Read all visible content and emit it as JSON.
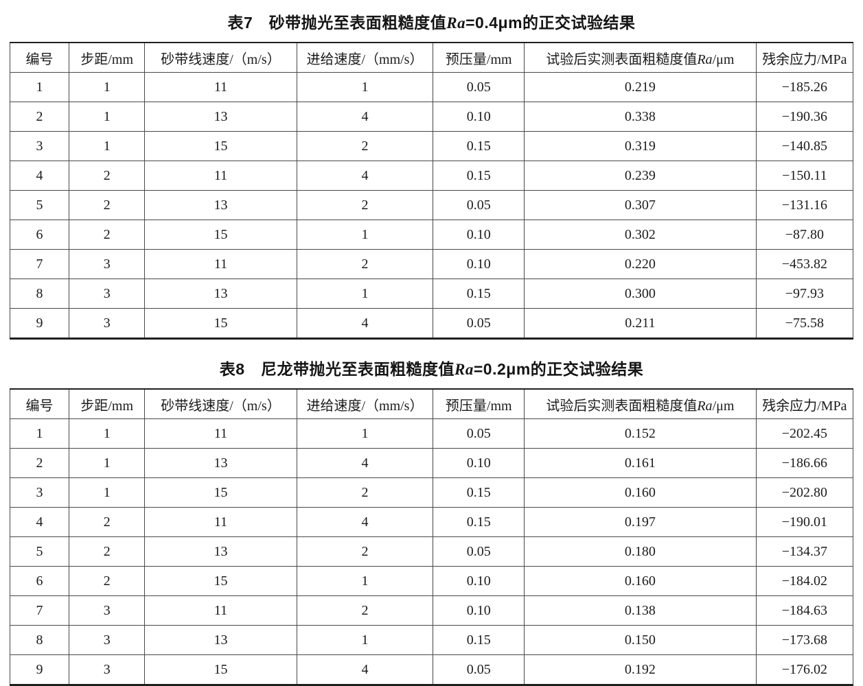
{
  "document": {
    "background": "#ffffff",
    "text_color": "#1b1b1b",
    "border_color": "#474747",
    "heavy_rule_color": "#1e1e1e"
  },
  "chart_data": [
    {
      "type": "table",
      "title": "表7　砂带抛光至表面粗糙度值Ra=0.4μm的正交试验结果",
      "columns": [
        "编号",
        "步距/mm",
        "砂带线速度/（m/s）",
        "进给速度/（mm/s）",
        "预压量/mm",
        "试验后实测表面粗糙度值Ra/μm",
        "残余应力/MPa"
      ],
      "rows": [
        [
          "1",
          "1",
          "11",
          "1",
          "0.05",
          "0.219",
          "−185.26"
        ],
        [
          "2",
          "1",
          "13",
          "4",
          "0.10",
          "0.338",
          "−190.36"
        ],
        [
          "3",
          "1",
          "15",
          "2",
          "0.15",
          "0.319",
          "−140.85"
        ],
        [
          "4",
          "2",
          "11",
          "4",
          "0.15",
          "0.239",
          "−150.11"
        ],
        [
          "5",
          "2",
          "13",
          "2",
          "0.05",
          "0.307",
          "−131.16"
        ],
        [
          "6",
          "2",
          "15",
          "1",
          "0.10",
          "0.302",
          "−87.80"
        ],
        [
          "7",
          "3",
          "11",
          "2",
          "0.10",
          "0.220",
          "−453.82"
        ],
        [
          "8",
          "3",
          "13",
          "1",
          "0.15",
          "0.300",
          "−97.93"
        ],
        [
          "9",
          "3",
          "15",
          "4",
          "0.05",
          "0.211",
          "−75.58"
        ]
      ]
    },
    {
      "type": "table",
      "title": "表8　尼龙带抛光至表面粗糙度值Ra=0.2μm的正交试验结果",
      "columns": [
        "编号",
        "步距/mm",
        "砂带线速度/（m/s）",
        "进给速度/（mm/s）",
        "预压量/mm",
        "试验后实测表面粗糙度值Ra/μm",
        "残余应力/MPa"
      ],
      "rows": [
        [
          "1",
          "1",
          "11",
          "1",
          "0.05",
          "0.152",
          "−202.45"
        ],
        [
          "2",
          "1",
          "13",
          "4",
          "0.10",
          "0.161",
          "−186.66"
        ],
        [
          "3",
          "1",
          "15",
          "2",
          "0.15",
          "0.160",
          "−202.80"
        ],
        [
          "4",
          "2",
          "11",
          "4",
          "0.15",
          "0.197",
          "−190.01"
        ],
        [
          "5",
          "2",
          "13",
          "2",
          "0.05",
          "0.180",
          "−134.37"
        ],
        [
          "6",
          "2",
          "15",
          "1",
          "0.10",
          "0.160",
          "−184.02"
        ],
        [
          "7",
          "3",
          "11",
          "2",
          "0.10",
          "0.138",
          "−184.63"
        ],
        [
          "8",
          "3",
          "13",
          "1",
          "0.15",
          "0.150",
          "−173.68"
        ],
        [
          "9",
          "3",
          "15",
          "4",
          "0.05",
          "0.192",
          "−176.02"
        ]
      ]
    }
  ],
  "tables": [
    {
      "name": "table7",
      "title_segments": [
        {
          "t": "表7　砂带抛光至表面粗糙度值"
        },
        {
          "t": "Ra",
          "i": true
        },
        {
          "t": "=0.4μm的正交试验结果"
        }
      ],
      "columns": [
        [
          {
            "t": "编号"
          }
        ],
        [
          {
            "t": "步距/mm"
          }
        ],
        [
          {
            "t": "砂带线速度/（m/s）"
          }
        ],
        [
          {
            "t": "进给速度/（mm/s）"
          }
        ],
        [
          {
            "t": "预压量/mm"
          }
        ],
        [
          {
            "t": "试验后实测表面粗糙度值"
          },
          {
            "t": "Ra",
            "i": true
          },
          {
            "t": "/μm"
          }
        ],
        [
          {
            "t": "残余应力/MPa"
          }
        ]
      ],
      "rows": [
        [
          "1",
          "1",
          "11",
          "1",
          "0.05",
          "0.219",
          "−185.26"
        ],
        [
          "2",
          "1",
          "13",
          "4",
          "0.10",
          "0.338",
          "−190.36"
        ],
        [
          "3",
          "1",
          "15",
          "2",
          "0.15",
          "0.319",
          "−140.85"
        ],
        [
          "4",
          "2",
          "11",
          "4",
          "0.15",
          "0.239",
          "−150.11"
        ],
        [
          "5",
          "2",
          "13",
          "2",
          "0.05",
          "0.307",
          "−131.16"
        ],
        [
          "6",
          "2",
          "15",
          "1",
          "0.10",
          "0.302",
          "−87.80"
        ],
        [
          "7",
          "3",
          "11",
          "2",
          "0.10",
          "0.220",
          "−453.82"
        ],
        [
          "8",
          "3",
          "13",
          "1",
          "0.15",
          "0.300",
          "−97.93"
        ],
        [
          "9",
          "3",
          "15",
          "4",
          "0.05",
          "0.211",
          "−75.58"
        ]
      ]
    },
    {
      "name": "table8",
      "title_segments": [
        {
          "t": "表8　尼龙带抛光至表面粗糙度值"
        },
        {
          "t": "Ra",
          "i": true
        },
        {
          "t": "=0.2μm的正交试验结果"
        }
      ],
      "columns": [
        [
          {
            "t": "编号"
          }
        ],
        [
          {
            "t": "步距/mm"
          }
        ],
        [
          {
            "t": "砂带线速度/（m/s）"
          }
        ],
        [
          {
            "t": "进给速度/（mm/s）"
          }
        ],
        [
          {
            "t": "预压量/mm"
          }
        ],
        [
          {
            "t": "试验后实测表面粗糙度值"
          },
          {
            "t": "Ra",
            "i": true
          },
          {
            "t": "/μm"
          }
        ],
        [
          {
            "t": "残余应力/MPa"
          }
        ]
      ],
      "rows": [
        [
          "1",
          "1",
          "11",
          "1",
          "0.05",
          "0.152",
          "−202.45"
        ],
        [
          "2",
          "1",
          "13",
          "4",
          "0.10",
          "0.161",
          "−186.66"
        ],
        [
          "3",
          "1",
          "15",
          "2",
          "0.15",
          "0.160",
          "−202.80"
        ],
        [
          "4",
          "2",
          "11",
          "4",
          "0.15",
          "0.197",
          "−190.01"
        ],
        [
          "5",
          "2",
          "13",
          "2",
          "0.05",
          "0.180",
          "−134.37"
        ],
        [
          "6",
          "2",
          "15",
          "1",
          "0.10",
          "0.160",
          "−184.02"
        ],
        [
          "7",
          "3",
          "11",
          "2",
          "0.10",
          "0.138",
          "−184.63"
        ],
        [
          "8",
          "3",
          "13",
          "1",
          "0.15",
          "0.150",
          "−173.68"
        ],
        [
          "9",
          "3",
          "15",
          "4",
          "0.05",
          "0.192",
          "−176.02"
        ]
      ]
    }
  ]
}
